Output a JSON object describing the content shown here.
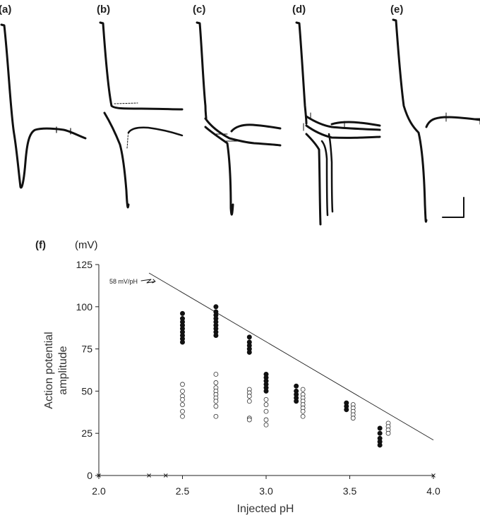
{
  "traces": {
    "panels": [
      {
        "label": "(a)"
      },
      {
        "label": "(b)"
      },
      {
        "label": "(c)"
      },
      {
        "label": "(d)"
      },
      {
        "label": "(e)"
      }
    ]
  },
  "chart_data": {
    "type": "scatter",
    "panel_label": "(f)",
    "unit_label": "(mV)",
    "xlabel": "Injected pH",
    "ylabel": "Action potential amplitude",
    "xlim": [
      2.0,
      4.0
    ],
    "ylim": [
      0,
      125
    ],
    "xticks": [
      "2.0",
      "2.5",
      "3.0",
      "3.5",
      "4.0"
    ],
    "yticks": [
      "0",
      "25",
      "50",
      "75",
      "100",
      "125"
    ],
    "grid": false,
    "reference_line": {
      "label": "58 mV/pH",
      "points": [
        [
          2.3,
          120
        ],
        [
          4.0,
          21
        ]
      ]
    },
    "series": [
      {
        "marker": "filled-circle",
        "points": [
          [
            2.5,
            96
          ],
          [
            2.5,
            93
          ],
          [
            2.5,
            91
          ],
          [
            2.5,
            89
          ],
          [
            2.5,
            87
          ],
          [
            2.5,
            85
          ],
          [
            2.5,
            83
          ],
          [
            2.5,
            81
          ],
          [
            2.5,
            79
          ],
          [
            2.7,
            100
          ],
          [
            2.7,
            97
          ],
          [
            2.7,
            95
          ],
          [
            2.7,
            93
          ],
          [
            2.7,
            91
          ],
          [
            2.7,
            89
          ],
          [
            2.7,
            87
          ],
          [
            2.7,
            85
          ],
          [
            2.7,
            83
          ],
          [
            2.9,
            82
          ],
          [
            2.9,
            79
          ],
          [
            2.9,
            77
          ],
          [
            2.9,
            75
          ],
          [
            2.9,
            73
          ],
          [
            3.0,
            60
          ],
          [
            3.0,
            58
          ],
          [
            3.0,
            56
          ],
          [
            3.0,
            54
          ],
          [
            3.0,
            52
          ],
          [
            3.0,
            50
          ],
          [
            3.18,
            53
          ],
          [
            3.18,
            50
          ],
          [
            3.18,
            48
          ],
          [
            3.18,
            46
          ],
          [
            3.18,
            44
          ],
          [
            3.48,
            43
          ],
          [
            3.48,
            41
          ],
          [
            3.48,
            39
          ],
          [
            3.68,
            28
          ],
          [
            3.68,
            25
          ],
          [
            3.68,
            22
          ],
          [
            3.68,
            20
          ],
          [
            3.68,
            18
          ]
        ]
      },
      {
        "marker": "open-circle",
        "points": [
          [
            2.5,
            54
          ],
          [
            2.5,
            50
          ],
          [
            2.5,
            47
          ],
          [
            2.5,
            45
          ],
          [
            2.5,
            42
          ],
          [
            2.5,
            38
          ],
          [
            2.5,
            35
          ],
          [
            2.7,
            60
          ],
          [
            2.7,
            55
          ],
          [
            2.7,
            52
          ],
          [
            2.7,
            50
          ],
          [
            2.7,
            48
          ],
          [
            2.7,
            46
          ],
          [
            2.7,
            44
          ],
          [
            2.7,
            41
          ],
          [
            2.7,
            35
          ],
          [
            2.9,
            51
          ],
          [
            2.9,
            49
          ],
          [
            2.9,
            47
          ],
          [
            2.9,
            44
          ],
          [
            2.9,
            34
          ],
          [
            2.9,
            33
          ],
          [
            3.0,
            45
          ],
          [
            3.0,
            42
          ],
          [
            3.0,
            38
          ],
          [
            3.0,
            33
          ],
          [
            3.0,
            30
          ],
          [
            3.22,
            51
          ],
          [
            3.22,
            48
          ],
          [
            3.22,
            46
          ],
          [
            3.22,
            44
          ],
          [
            3.22,
            42
          ],
          [
            3.22,
            40
          ],
          [
            3.22,
            38
          ],
          [
            3.22,
            35
          ],
          [
            3.52,
            42
          ],
          [
            3.52,
            40
          ],
          [
            3.52,
            38
          ],
          [
            3.52,
            36
          ],
          [
            3.52,
            34
          ],
          [
            3.73,
            31
          ],
          [
            3.73,
            29
          ],
          [
            3.73,
            27
          ],
          [
            3.73,
            25
          ]
        ]
      },
      {
        "marker": "cross",
        "points": [
          [
            2.0,
            0
          ],
          [
            2.3,
            0
          ],
          [
            2.4,
            0
          ],
          [
            4.0,
            0
          ]
        ]
      }
    ]
  }
}
